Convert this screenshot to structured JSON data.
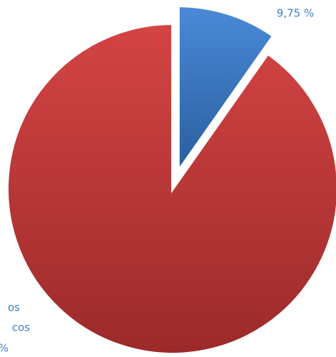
{
  "chart_data": {
    "type": "pie",
    "values": [
      9.75,
      90.25
    ],
    "value_labels": [
      "9,75 %",
      "%"
    ],
    "annotations": [
      "os",
      "cos"
    ],
    "colors": [
      [
        "#4a8ad8",
        "#2a5e9e"
      ],
      [
        "#d44444",
        "#9c2a2a"
      ]
    ],
    "label_color": "#3f7fc8",
    "explode": [
      true,
      false
    ]
  }
}
